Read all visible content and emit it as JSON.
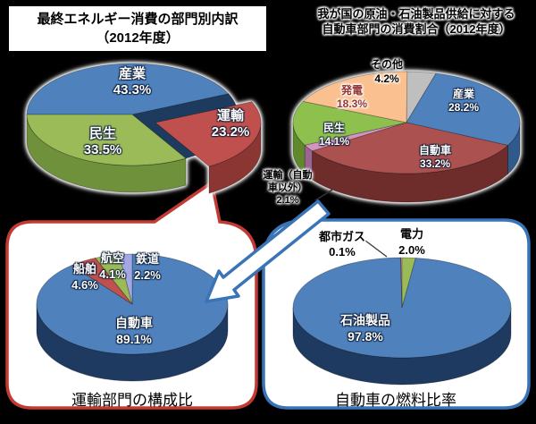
{
  "panels": {
    "top_left_title": {
      "line1": "最終エネルギー消費の部門別内訳",
      "line2": "（2012年度）"
    },
    "top_right_title": {
      "line1": "我が国の原油・石油製品供給に対する",
      "line2": "自動車部門の消費割合（2012年度）"
    },
    "bottom_left_caption": "運輸部門の構成比",
    "bottom_right_caption": "自動車の燃料比率"
  },
  "accent_colors": {
    "left_box_border": "#c13b33",
    "right_box_border": "#3a74b8",
    "pie_cavity": "#1d3a5f",
    "pointer_line": "#333333"
  },
  "chart_data": [
    {
      "id": "final_energy_by_sector",
      "type": "pie",
      "pie_style": "3d",
      "title": "最終エネルギー消費の部門別内訳（2012年度）",
      "unit": "%",
      "start_angle_deg": 180,
      "direction": "clockwise",
      "slices": [
        {
          "label": "産業",
          "value": 43.3,
          "pct_label": "43.3%",
          "color": "#4f81bd",
          "side_color": "#2e5687"
        },
        {
          "label": "運輸",
          "value": 23.2,
          "pct_label": "23.2%",
          "color": "#c0504d",
          "side_color": "#8c3633",
          "exploded": true
        },
        {
          "label": "民生",
          "value": 33.5,
          "pct_label": "33.5%",
          "color": "#9bbb59",
          "side_color": "#70913c"
        }
      ]
    },
    {
      "id": "oil_supply_consumption_share",
      "type": "pie",
      "pie_style": "3d",
      "title": "我が国の原油・石油製品供給に対する自動車部門の消費割合（2012年度）",
      "unit": "%",
      "start_angle_deg": 90,
      "direction": "clockwise",
      "slices": [
        {
          "label": "その他",
          "value": 4.2,
          "pct_label": "4.2%",
          "color": "#bfbfbf",
          "side_color": "#8f8f8f"
        },
        {
          "label": "産業",
          "value": 28.2,
          "pct_label": "28.2%",
          "color": "#4f81bd",
          "side_color": "#30598c"
        },
        {
          "label": "自動車",
          "value": 33.2,
          "pct_label": "33.2%",
          "color": "#ab5150",
          "side_color": "#6e2c2b"
        },
        {
          "label": "運輸（自動車以外）",
          "value": 2.1,
          "pct_label": "2.1%",
          "color": "#d494c0",
          "side_color": "#9c6490",
          "label_lines": [
            "運輸（自動",
            "車以外）"
          ]
        },
        {
          "label": "民生",
          "value": 14.1,
          "pct_label": "14.1%",
          "color": "#8ec04e",
          "side_color": "#60892c"
        },
        {
          "label": "発電",
          "value": 18.3,
          "pct_label": "18.3%",
          "color": "#fac08f",
          "side_color": "#d29a5e"
        }
      ]
    },
    {
      "id": "transport_composition",
      "type": "pie",
      "pie_style": "3d",
      "title": "運輸部門の構成比",
      "unit": "%",
      "start_angle_deg": 90,
      "direction": "clockwise",
      "slices": [
        {
          "label": "自動車",
          "value": 89.1,
          "pct_label": "89.1%",
          "color": "#4f81bd",
          "side_color": "#1f3a60"
        },
        {
          "label": "船舶",
          "value": 4.6,
          "pct_label": "4.6%",
          "color": "#c0504d",
          "side_color": "#8c3633"
        },
        {
          "label": "航空",
          "value": 4.1,
          "pct_label": "4.1%",
          "color": "#9bbb59",
          "side_color": "#70913c"
        },
        {
          "label": "鉄道",
          "value": 2.2,
          "pct_label": "2.2%",
          "color": "#a3a8e4",
          "side_color": "#6f74b5"
        }
      ]
    },
    {
      "id": "automobile_fuel_ratio",
      "type": "pie",
      "pie_style": "3d",
      "title": "自動車の燃料比率",
      "unit": "%",
      "start_angle_deg": 90,
      "direction": "clockwise",
      "slices": [
        {
          "label": "電力",
          "value": 2.0,
          "pct_label": "2.0%",
          "color": "#9bbb59",
          "side_color": "#70913c"
        },
        {
          "label": "石油製品",
          "value": 97.8,
          "pct_label": "97.8%",
          "color": "#4f81bd",
          "side_color": "#1f3a60"
        },
        {
          "label": "都市ガス",
          "value": 0.1,
          "pct_label": "0.1%",
          "color": "#c0504d",
          "side_color": "#8c3633"
        }
      ]
    }
  ]
}
